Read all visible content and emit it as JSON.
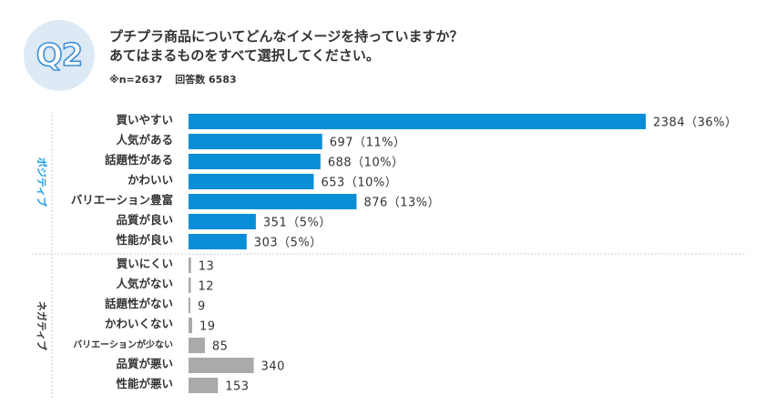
{
  "header": {
    "badge": "Q2",
    "question_line1": "プチプラ商品についてどんなイメージを持っていますか？",
    "question_line2": "あてはまるものをすべて選択してください。",
    "sample_size": "※n=2637",
    "answer_count": "回答数 6583"
  },
  "colors": {
    "positive": "#0a8ed7",
    "negative": "#aaaaaa",
    "badge_bg": "#dde9f5",
    "badge_text": "#3b8fd6",
    "positive_group_text": "#1a9be0",
    "negative_group_text": "#333333"
  },
  "chart_data": {
    "type": "bar",
    "orientation": "horizontal",
    "title": "プチプラ商品についてどんなイメージを持っていますか？",
    "groups": [
      {
        "name": "ポジティブ",
        "categories": [
          "買いやすい",
          "人気がある",
          "話題性がある",
          "かわいい",
          "バリエーション豊富",
          "品質が良い",
          "性能が良い"
        ],
        "values": [
          2384,
          697,
          688,
          653,
          876,
          351,
          303
        ],
        "value_labels": [
          "2384（36%）",
          "697（11%）",
          "688（10%）",
          "653（10%）",
          "876（13%）",
          "351（5%）",
          "303（5%）"
        ]
      },
      {
        "name": "ネガティブ",
        "categories": [
          "買いにくい",
          "人気がない",
          "話題性がない",
          "かわいくない",
          "バリエーションが少ない",
          "品質が悪い",
          "性能が悪い"
        ],
        "values": [
          13,
          12,
          9,
          19,
          85,
          340,
          153
        ],
        "value_labels": [
          "13",
          "12",
          "9",
          "19",
          "85",
          "340",
          "153"
        ]
      }
    ],
    "xlim": [
      0,
      2384
    ]
  }
}
